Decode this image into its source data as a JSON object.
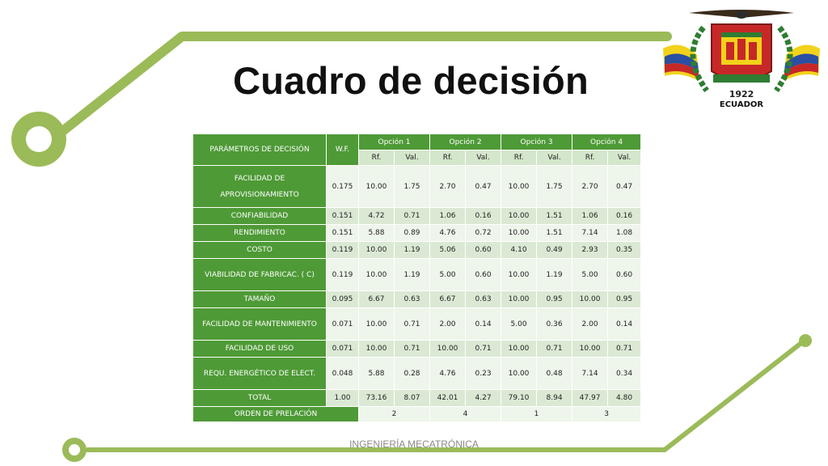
{
  "title": "Cuadro de decisión",
  "footer": "INGENIERÍA MECATRÓNICA",
  "emblem": {
    "year": "1922",
    "country": "ECUADOR"
  },
  "colors": {
    "table_green": "#4e9a36",
    "circuit_green": "#9bbb59"
  },
  "table": {
    "param_header": "PARÁMETROS DE DECISIÓN",
    "wf_header": "W.F.",
    "options": [
      "Opción 1",
      "Opción 2",
      "Opción 3",
      "Opción 4"
    ],
    "sub_headers": [
      "Rf.",
      "Val."
    ],
    "rows": [
      {
        "label": "FACILIDAD DE APROVISIONAMIENTO",
        "wf": "0.175",
        "cells": [
          "10.00",
          "1.75",
          "2.70",
          "0.47",
          "10.00",
          "1.75",
          "2.70",
          "0.47"
        ]
      },
      {
        "label": "CONFIABILIDAD",
        "wf": "0.151",
        "cells": [
          "4.72",
          "0.71",
          "1.06",
          "0.16",
          "10.00",
          "1.51",
          "1.06",
          "0.16"
        ]
      },
      {
        "label": "RENDIMIENTO",
        "wf": "0.151",
        "cells": [
          "5.88",
          "0.89",
          "4.76",
          "0.72",
          "10.00",
          "1.51",
          "7.14",
          "1.08"
        ]
      },
      {
        "label": "COSTO",
        "wf": "0.119",
        "cells": [
          "10.00",
          "1.19",
          "5.06",
          "0.60",
          "4.10",
          "0.49",
          "2.93",
          "0.35"
        ]
      },
      {
        "label": "VIABILIDAD DE FABRICAC. ( C)",
        "wf": "0.119",
        "cells": [
          "10.00",
          "1.19",
          "5.00",
          "0.60",
          "10.00",
          "1.19",
          "5.00",
          "0.60"
        ]
      },
      {
        "label": "TAMAÑO",
        "wf": "0.095",
        "cells": [
          "6.67",
          "0.63",
          "6.67",
          "0.63",
          "10.00",
          "0.95",
          "10.00",
          "0.95"
        ]
      },
      {
        "label": "FACILIDAD DE MANTENIMIENTO",
        "wf": "0.071",
        "cells": [
          "10.00",
          "0.71",
          "2.00",
          "0.14",
          "5.00",
          "0.36",
          "2.00",
          "0.14"
        ]
      },
      {
        "label": "FACILIDAD DE USO",
        "wf": "0.071",
        "cells": [
          "10.00",
          "0.71",
          "10.00",
          "0.71",
          "10.00",
          "0.71",
          "10.00",
          "0.71"
        ]
      },
      {
        "label": "REQU. ENERGÉTICO DE ELECT.",
        "wf": "0.048",
        "cells": [
          "5.88",
          "0.28",
          "4.76",
          "0.23",
          "10.00",
          "0.48",
          "7.14",
          "0.34"
        ]
      }
    ],
    "total": {
      "label": "TOTAL",
      "wf": "1.00",
      "cells": [
        "73.16",
        "8.07",
        "42.01",
        "4.27",
        "79.10",
        "8.94",
        "47.97",
        "4.80"
      ]
    },
    "ranking": {
      "label": "ORDEN DE PRELACIÓN",
      "values": [
        "2",
        "4",
        "1",
        "3"
      ]
    }
  }
}
